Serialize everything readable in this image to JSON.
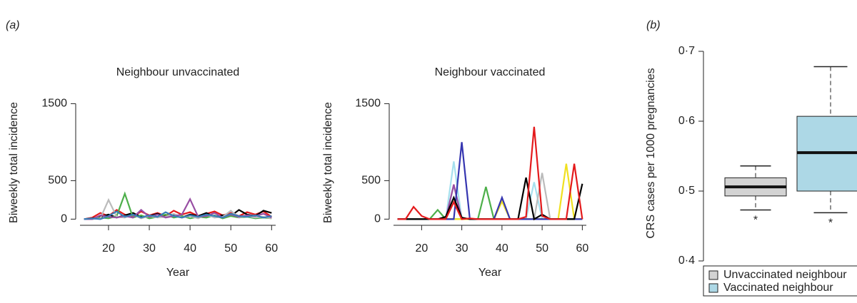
{
  "chart_data": [
    {
      "type": "line",
      "panel_label": "(a)",
      "title": "Neighbour unvaccinated",
      "xlabel": "Year",
      "ylabel": "Biweekly total incidence",
      "x": [
        14,
        16,
        18,
        20,
        22,
        24,
        26,
        28,
        30,
        32,
        34,
        36,
        38,
        40,
        42,
        44,
        46,
        48,
        50,
        52,
        54,
        56,
        58,
        60
      ],
      "xlim": [
        13,
        61
      ],
      "xticks": [
        20,
        30,
        40,
        50,
        60
      ],
      "ylim": [
        -80,
        1550
      ],
      "yticks": [
        0,
        500,
        1500
      ],
      "series": [
        {
          "color": "#e41a1c",
          "values": [
            0,
            20,
            80,
            40,
            120,
            60,
            30,
            100,
            50,
            80,
            40,
            110,
            60,
            90,
            40,
            70,
            100,
            50,
            80,
            40,
            90,
            60,
            100,
            30
          ]
        },
        {
          "color": "#000000",
          "values": [
            0,
            10,
            30,
            60,
            20,
            50,
            80,
            30,
            40,
            70,
            30,
            50,
            20,
            60,
            40,
            80,
            30,
            50,
            40,
            120,
            60,
            40,
            110,
            80
          ]
        },
        {
          "color": "#4daf4a",
          "values": [
            0,
            0,
            20,
            10,
            40,
            330,
            20,
            50,
            10,
            30,
            60,
            20,
            40,
            10,
            30,
            20,
            50,
            10,
            40,
            20,
            30,
            10,
            20,
            10
          ]
        },
        {
          "color": "#bbbbbb",
          "values": [
            0,
            0,
            10,
            250,
            30,
            20,
            60,
            10,
            40,
            20,
            30,
            70,
            20,
            40,
            10,
            60,
            20,
            30,
            110,
            20,
            40,
            20,
            30,
            10
          ]
        },
        {
          "color": "#984ea3",
          "values": [
            0,
            0,
            50,
            30,
            20,
            40,
            20,
            120,
            30,
            60,
            20,
            40,
            60,
            260,
            30,
            40,
            80,
            20,
            60,
            30,
            50,
            40,
            70,
            20
          ]
        },
        {
          "color": "#377eb8",
          "values": [
            0,
            10,
            0,
            40,
            100,
            30,
            60,
            20,
            50,
            30,
            90,
            40,
            20,
            50,
            30,
            60,
            40,
            20,
            70,
            40,
            30,
            50,
            20,
            40
          ]
        }
      ]
    },
    {
      "type": "line",
      "title": "Neighbour vaccinated",
      "xlabel": "Year",
      "ylabel": "Biweekly total incidence",
      "x": [
        14,
        16,
        18,
        20,
        22,
        24,
        26,
        28,
        30,
        32,
        34,
        36,
        38,
        40,
        42,
        44,
        46,
        48,
        50,
        52,
        54,
        56,
        58,
        60
      ],
      "xlim": [
        13,
        61
      ],
      "xticks": [
        20,
        30,
        40,
        50,
        60
      ],
      "ylim": [
        -80,
        1550
      ],
      "yticks": [
        0,
        500,
        1500
      ],
      "series": [
        {
          "color": "#a6e0ee",
          "values": [
            0,
            0,
            0,
            0,
            0,
            0,
            0,
            750,
            0,
            0,
            0,
            0,
            0,
            0,
            0,
            0,
            0,
            480,
            0,
            0,
            0,
            0,
            0,
            0
          ]
        },
        {
          "color": "#bbbbbb",
          "values": [
            0,
            0,
            0,
            0,
            0,
            0,
            0,
            440,
            0,
            0,
            0,
            0,
            0,
            0,
            0,
            0,
            0,
            0,
            600,
            0,
            0,
            0,
            0,
            0
          ]
        },
        {
          "color": "#984ea3",
          "values": [
            0,
            0,
            0,
            0,
            0,
            0,
            0,
            450,
            0,
            0,
            0,
            0,
            0,
            0,
            0,
            0,
            0,
            0,
            0,
            0,
            0,
            0,
            0,
            0
          ]
        },
        {
          "color": "#4daf4a",
          "values": [
            0,
            0,
            0,
            0,
            0,
            120,
            0,
            0,
            0,
            0,
            0,
            420,
            0,
            0,
            0,
            0,
            0,
            0,
            0,
            0,
            0,
            0,
            0,
            0
          ]
        },
        {
          "color": "#f0e020",
          "values": [
            0,
            0,
            0,
            0,
            0,
            0,
            0,
            0,
            0,
            0,
            0,
            0,
            0,
            230,
            0,
            0,
            0,
            0,
            0,
            0,
            0,
            720,
            0,
            0
          ]
        },
        {
          "color": "#3535b0",
          "values": [
            0,
            0,
            0,
            0,
            0,
            0,
            0,
            0,
            1000,
            0,
            0,
            0,
            0,
            280,
            0,
            0,
            0,
            0,
            0,
            0,
            0,
            0,
            0,
            0
          ]
        },
        {
          "color": "#000000",
          "values": [
            0,
            0,
            0,
            0,
            0,
            0,
            30,
            280,
            20,
            0,
            0,
            0,
            0,
            0,
            0,
            0,
            540,
            0,
            60,
            0,
            0,
            0,
            0,
            460
          ]
        },
        {
          "color": "#e41a1c",
          "values": [
            0,
            0,
            160,
            40,
            0,
            0,
            0,
            220,
            0,
            10,
            0,
            0,
            0,
            0,
            0,
            0,
            30,
            1200,
            40,
            0,
            0,
            0,
            720,
            0
          ]
        }
      ]
    },
    {
      "type": "box",
      "panel_label": "(b)",
      "ylabel": "CRS cases per 1000 pregnancies",
      "ylim": [
        0.4,
        0.7
      ],
      "yticks": [
        {
          "value": 0.4,
          "label": "0·4"
        },
        {
          "value": 0.5,
          "label": "0·5"
        },
        {
          "value": 0.6,
          "label": "0·6"
        },
        {
          "value": 0.7,
          "label": "0·7"
        }
      ],
      "outlier_color": "#f08070",
      "series": [
        {
          "name": "Unvaccinated neighbour",
          "color": "#d3d3d3",
          "whisker_low": 0.473,
          "q1": 0.493,
          "median": 0.506,
          "q3": 0.519,
          "whisker_high": 0.536,
          "outliers": [
            0.462
          ]
        },
        {
          "name": "Vaccinated neighbour",
          "color": "#add8e6",
          "whisker_low": 0.469,
          "q1": 0.5,
          "median": 0.555,
          "q3": 0.607,
          "whisker_high": 0.678,
          "outliers": [
            0.458
          ]
        }
      ]
    }
  ]
}
